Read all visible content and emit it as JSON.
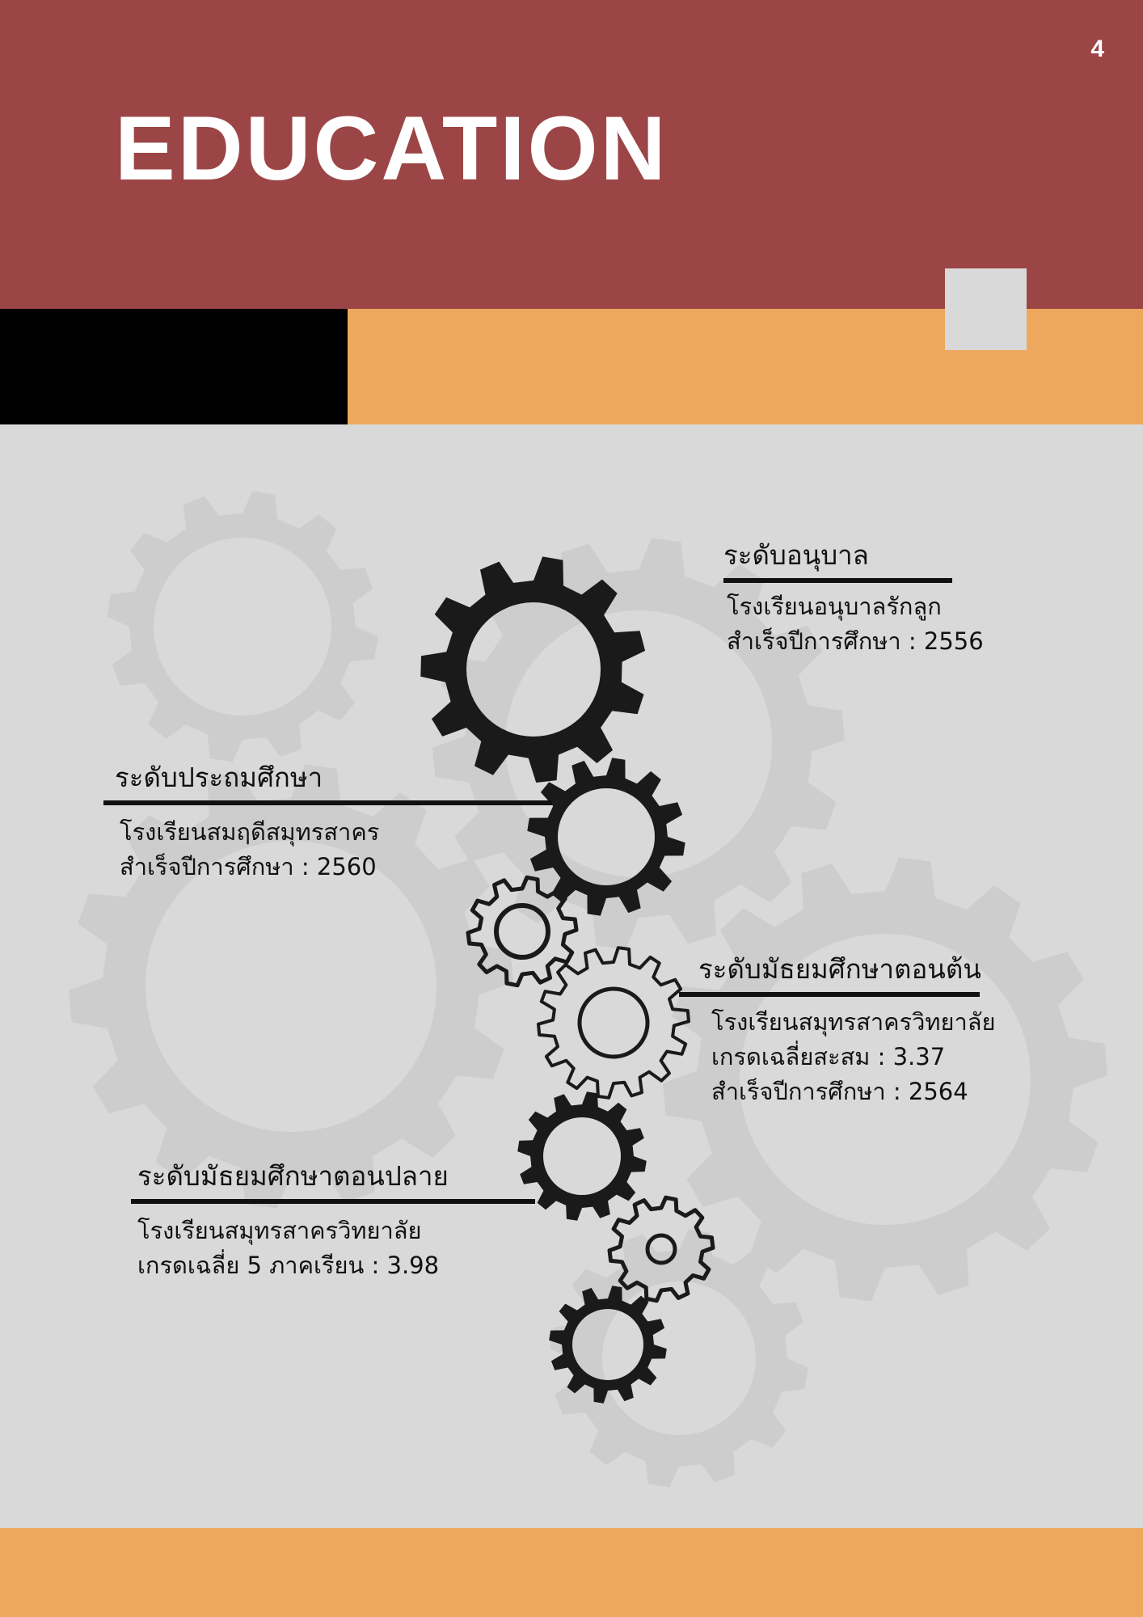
{
  "page": {
    "number": "4",
    "title": "EDUCATION"
  },
  "colors": {
    "header": "#9c4546",
    "accent_orange": "#eea85d",
    "background": "#d9d9d9",
    "black_block": "#000000",
    "gear_dark": "#1a1a1a",
    "gear_watermark": "#cdcdcd"
  },
  "levels": [
    {
      "heading": "ระดับอนุบาล",
      "lines": [
        "โรงเรียนอนุบาลรักลูก",
        "สำเร็จปีการศึกษา : 2556"
      ]
    },
    {
      "heading": "ระดับประถมศึกษา",
      "lines": [
        "โรงเรียนสมฤดีสมุทรสาคร",
        "สำเร็จปีการศึกษา : 2560"
      ]
    },
    {
      "heading": "ระดับมัธยมศึกษาตอนต้น",
      "lines": [
        "โรงเรียนสมุทรสาครวิทยาลัย",
        "เกรดเฉลี่ยสะสม : 3.37",
        "สำเร็จปีการศึกษา : 2564"
      ]
    },
    {
      "heading": "ระดับมัธยมศึกษาตอนปลาย",
      "lines": [
        "โรงเรียนสมุทรสาครวิทยาลัย",
        "เกรดเฉลี่ย 5 ภาคเรียน : 3.98"
      ]
    }
  ],
  "decorations": {
    "gear_icon": "cog-gear-icon"
  }
}
